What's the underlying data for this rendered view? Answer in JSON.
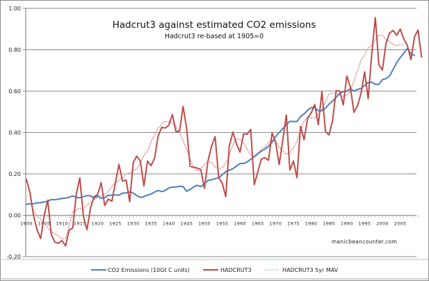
{
  "chart_data": {
    "type": "line",
    "title": "Hadcrut3 against estimated CO2 emissions",
    "subtitle": "Hadcrut3 re-based at 1905=0",
    "annotation": "manicbeancounter.com",
    "xlabel": "",
    "ylabel": "",
    "ylim": [
      -0.2,
      1.0
    ],
    "xlim": [
      1900,
      2010
    ],
    "grid": true,
    "legend_position": "bottom",
    "y_ticks": [
      "-0.20",
      "0.00",
      "0.20",
      "0.40",
      "0.60",
      "0.80",
      "1.00"
    ],
    "y_tick_values": [
      -0.2,
      0,
      0.2,
      0.4,
      0.6,
      0.8,
      1.0
    ],
    "x_ticks": [
      "1900",
      "1905",
      "1910",
      "1915",
      "1920",
      "1925",
      "1930",
      "1935",
      "1940",
      "1945",
      "1950",
      "1955",
      "1960",
      "1965",
      "1970",
      "1975",
      "1980",
      "1985",
      "1990",
      "1995",
      "2000",
      "2005"
    ],
    "x_tick_values": [
      1900,
      1905,
      1910,
      1915,
      1920,
      1925,
      1930,
      1935,
      1940,
      1945,
      1950,
      1955,
      1960,
      1965,
      1970,
      1975,
      1980,
      1985,
      1990,
      1995,
      2000,
      2005
    ],
    "series": [
      {
        "name": "CO2 Emissions (10Gt C units)",
        "color": "#4a7ebb",
        "style": "solid",
        "start_year": 1900,
        "values": [
          0.053,
          0.055,
          0.056,
          0.06,
          0.061,
          0.064,
          0.068,
          0.076,
          0.075,
          0.078,
          0.081,
          0.083,
          0.087,
          0.094,
          0.086,
          0.085,
          0.09,
          0.095,
          0.094,
          0.083,
          0.094,
          0.082,
          0.085,
          0.097,
          0.097,
          0.098,
          0.097,
          0.107,
          0.108,
          0.113,
          0.107,
          0.095,
          0.086,
          0.09,
          0.097,
          0.103,
          0.112,
          0.12,
          0.114,
          0.12,
          0.132,
          0.136,
          0.136,
          0.14,
          0.139,
          0.116,
          0.125,
          0.137,
          0.145,
          0.138,
          0.153,
          0.168,
          0.171,
          0.177,
          0.18,
          0.196,
          0.211,
          0.218,
          0.225,
          0.238,
          0.25,
          0.25,
          0.258,
          0.271,
          0.283,
          0.297,
          0.31,
          0.32,
          0.333,
          0.353,
          0.38,
          0.4,
          0.418,
          0.437,
          0.454,
          0.453,
          0.453,
          0.477,
          0.49,
          0.508,
          0.52,
          0.52,
          0.505,
          0.505,
          0.518,
          0.537,
          0.552,
          0.57,
          0.588,
          0.598,
          0.6,
          0.612,
          0.6,
          0.608,
          0.613,
          0.627,
          0.642,
          0.643,
          0.633,
          0.633,
          0.655,
          0.66,
          0.673,
          0.705,
          0.738,
          0.762,
          0.783,
          0.806,
          0.782,
          0.772
        ]
      },
      {
        "name": "HADCRUT3",
        "color": "#be4b48",
        "style": "solid",
        "start_year": 1900,
        "values": [
          0.173,
          0.11,
          0.0,
          -0.072,
          -0.112,
          0.0,
          0.073,
          -0.093,
          -0.13,
          -0.135,
          -0.122,
          -0.148,
          -0.072,
          -0.062,
          0.103,
          0.18,
          -0.004,
          -0.07,
          0.035,
          0.09,
          0.1,
          0.158,
          0.047,
          0.078,
          0.068,
          0.158,
          0.246,
          0.165,
          0.17,
          0.066,
          0.255,
          0.286,
          0.262,
          0.142,
          0.262,
          0.24,
          0.275,
          0.383,
          0.425,
          0.422,
          0.435,
          0.487,
          0.405,
          0.405,
          0.526,
          0.42,
          0.236,
          0.232,
          0.228,
          0.22,
          0.13,
          0.262,
          0.333,
          0.38,
          0.182,
          0.155,
          0.09,
          0.335,
          0.402,
          0.345,
          0.305,
          0.393,
          0.392,
          0.415,
          0.148,
          0.21,
          0.272,
          0.278,
          0.266,
          0.398,
          0.352,
          0.245,
          0.36,
          0.485,
          0.218,
          0.262,
          0.182,
          0.43,
          0.365,
          0.47,
          0.495,
          0.535,
          0.438,
          0.598,
          0.405,
          0.388,
          0.457,
          0.602,
          0.6,
          0.533,
          0.673,
          0.62,
          0.497,
          0.53,
          0.59,
          0.693,
          0.563,
          0.778,
          0.955,
          0.728,
          0.702,
          0.83,
          0.88,
          0.893,
          0.87,
          0.9,
          0.852,
          0.822,
          0.752,
          0.862,
          0.895,
          0.765
        ]
      },
      {
        "name": "HADCRUT3 5yr MAV",
        "color": "#e09c9a",
        "style": "dotted",
        "start_year": 1902,
        "values": [
          0.02,
          0.0,
          -0.02,
          -0.04,
          -0.06,
          -0.08,
          -0.09,
          -0.1,
          -0.115,
          -0.11,
          -0.05,
          0.02,
          0.025,
          0.035,
          0.03,
          0.05,
          0.06,
          0.075,
          0.085,
          0.095,
          0.1,
          0.115,
          0.14,
          0.155,
          0.17,
          0.18,
          0.2,
          0.205,
          0.215,
          0.225,
          0.25,
          0.29,
          0.31,
          0.355,
          0.39,
          0.42,
          0.44,
          0.455,
          0.45,
          0.445,
          0.43,
          0.4,
          0.36,
          0.32,
          0.27,
          0.23,
          0.215,
          0.225,
          0.245,
          0.26,
          0.255,
          0.235,
          0.225,
          0.23,
          0.25,
          0.29,
          0.34,
          0.37,
          0.365,
          0.35,
          0.32,
          0.29,
          0.285,
          0.3,
          0.32,
          0.33,
          0.35,
          0.365,
          0.36,
          0.33,
          0.31,
          0.295,
          0.305,
          0.325,
          0.355,
          0.41,
          0.455,
          0.475,
          0.47,
          0.47,
          0.49,
          0.51,
          0.55,
          0.585,
          0.59,
          0.59,
          0.58,
          0.575,
          0.58,
          0.6,
          0.65,
          0.7,
          0.75,
          0.775,
          0.81,
          0.82,
          0.85,
          0.87,
          0.87,
          0.85,
          0.84,
          0.825,
          0.82,
          0.825,
          0.82
        ]
      }
    ]
  },
  "legend": {
    "items": [
      {
        "label": "CO2 Emissions (10Gt C units)",
        "color": "#4a7ebb",
        "style": "solid"
      },
      {
        "label": "HADCRUT3",
        "color": "#be4b48",
        "style": "solid"
      },
      {
        "label": "HADCRUT3 5yr MAV",
        "color": "#e09c9a",
        "style": "dotted"
      }
    ]
  }
}
